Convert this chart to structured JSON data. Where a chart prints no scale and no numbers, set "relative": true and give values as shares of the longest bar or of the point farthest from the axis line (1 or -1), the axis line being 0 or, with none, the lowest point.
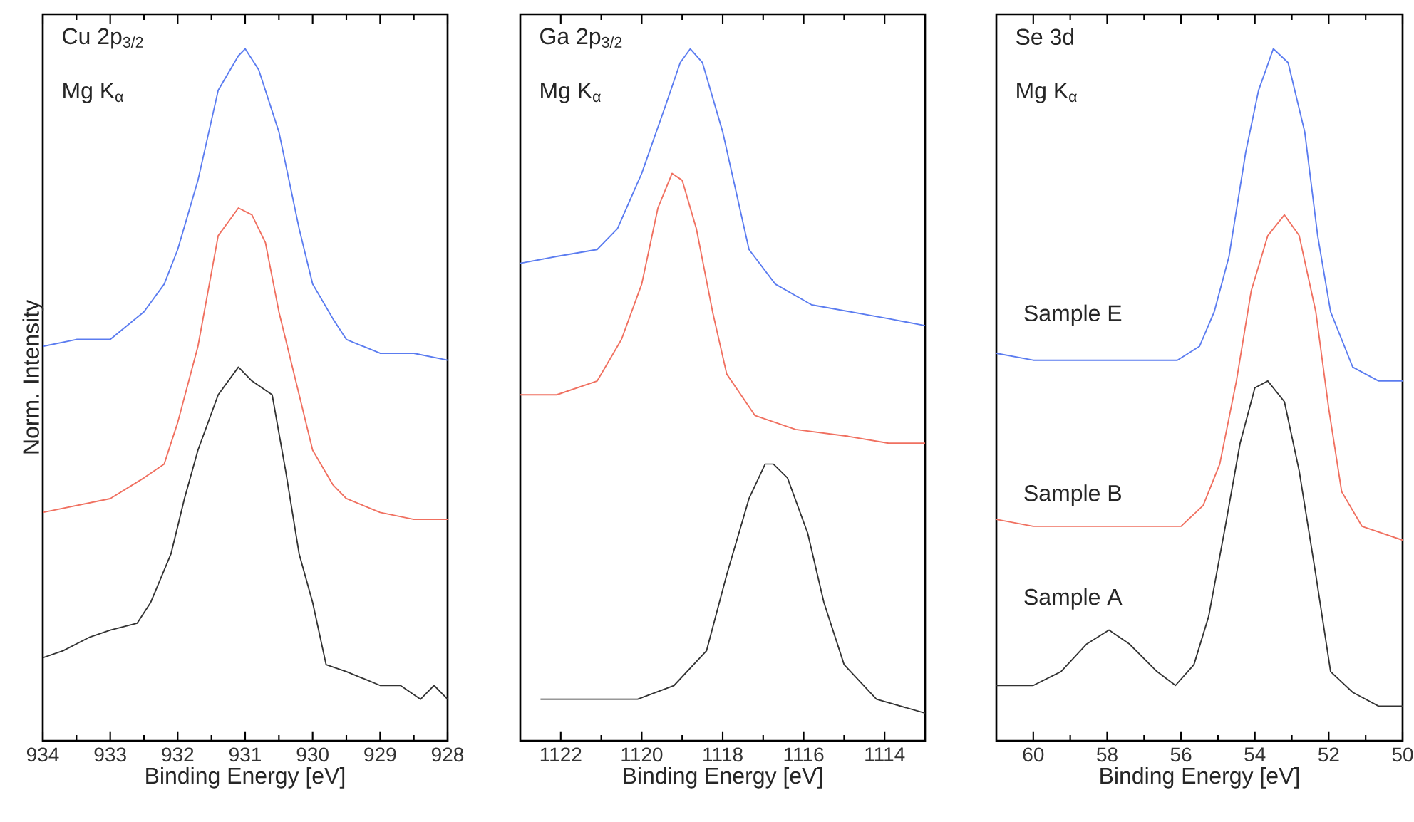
{
  "chart_data": [
    {
      "type": "line",
      "relative": true,
      "tick_labels": "x",
      "ylabel": "Norm. Intensity",
      "xlabel": "Binding Energy [eV]",
      "xlim": [
        934,
        928
      ],
      "xticks": [
        934,
        933,
        932,
        931,
        930,
        929,
        928
      ],
      "annotations": [
        "Cu 2p$_{3/2}$",
        "Mg K$_{α}$"
      ],
      "series": [
        {
          "color": "#5b7cf0",
          "x": [
            934,
            933.5,
            933,
            932.5,
            932.2,
            932,
            931.7,
            931.4,
            931.1,
            931.0,
            930.8,
            930.5,
            930.2,
            930,
            929.7,
            929.5,
            929,
            928.5,
            928
          ],
          "values": [
            0.57,
            0.58,
            0.58,
            0.62,
            0.66,
            0.71,
            0.81,
            0.94,
            0.99,
            1.0,
            0.97,
            0.88,
            0.74,
            0.66,
            0.61,
            0.58,
            0.56,
            0.56,
            0.55
          ]
        },
        {
          "color": "#f07060",
          "x": [
            934,
            933.5,
            933,
            932.5,
            932.2,
            932,
            931.7,
            931.4,
            931.1,
            930.9,
            930.7,
            930.5,
            930.2,
            930,
            929.7,
            929.5,
            929,
            928.5,
            928
          ],
          "values": [
            0.33,
            0.34,
            0.35,
            0.38,
            0.4,
            0.46,
            0.57,
            0.73,
            0.77,
            0.76,
            0.72,
            0.62,
            0.5,
            0.42,
            0.37,
            0.35,
            0.33,
            0.32,
            0.32
          ]
        },
        {
          "color": "#333333",
          "x": [
            934,
            933.7,
            933.3,
            933,
            932.6,
            932.4,
            932.1,
            931.9,
            931.7,
            931.4,
            931.1,
            930.9,
            930.6,
            930.4,
            930.2,
            930,
            929.8,
            929.5,
            929,
            928.7,
            928.4,
            928.2,
            928
          ],
          "values": [
            0.12,
            0.13,
            0.15,
            0.16,
            0.17,
            0.2,
            0.27,
            0.35,
            0.42,
            0.5,
            0.54,
            0.52,
            0.5,
            0.39,
            0.27,
            0.2,
            0.11,
            0.1,
            0.08,
            0.08,
            0.06,
            0.08,
            0.06
          ]
        }
      ]
    },
    {
      "type": "line",
      "relative": true,
      "tick_labels": "x",
      "xlabel": "Binding Energy [eV]",
      "xlim": [
        1123,
        1113
      ],
      "xticks": [
        1122,
        1120,
        1118,
        1116,
        1114
      ],
      "annotations": [
        "Ga 2p$_{3/2}$",
        "Mg K$_{α}$"
      ],
      "series": [
        {
          "color": "#5b7cf0",
          "x": [
            1123,
            1122.1,
            1121.1,
            1120.6,
            1120,
            1119.4,
            1119.05,
            1118.8,
            1118.5,
            1118,
            1117.35,
            1116.7,
            1115.8,
            1114.85,
            1113.9,
            1113
          ],
          "values": [
            0.69,
            0.7,
            0.71,
            0.74,
            0.82,
            0.92,
            0.98,
            1.0,
            0.98,
            0.88,
            0.71,
            0.66,
            0.63,
            0.62,
            0.61,
            0.6
          ]
        },
        {
          "color": "#f07060",
          "x": [
            1123,
            1122.1,
            1121.1,
            1120.5,
            1120,
            1119.6,
            1119.25,
            1119,
            1118.65,
            1118.25,
            1117.9,
            1117.2,
            1116.2,
            1114.9,
            1113.9,
            1113
          ],
          "values": [
            0.5,
            0.5,
            0.52,
            0.58,
            0.66,
            0.77,
            0.82,
            0.81,
            0.74,
            0.62,
            0.53,
            0.47,
            0.45,
            0.44,
            0.43,
            0.43
          ]
        },
        {
          "color": "#333333",
          "x": [
            1122.5,
            1121.4,
            1120.1,
            1119.2,
            1118.4,
            1117.9,
            1117.35,
            1116.95,
            1116.75,
            1116.4,
            1115.9,
            1115.5,
            1115,
            1114.2,
            1113
          ],
          "values": [
            0.06,
            0.06,
            0.06,
            0.08,
            0.13,
            0.24,
            0.35,
            0.4,
            0.4,
            0.38,
            0.3,
            0.2,
            0.11,
            0.06,
            0.04
          ]
        }
      ]
    },
    {
      "type": "line",
      "relative": true,
      "tick_labels": "x",
      "xlabel": "Binding Energy [eV]",
      "xlim": [
        61,
        50
      ],
      "xticks": [
        60,
        58,
        56,
        54,
        52,
        50
      ],
      "annotations": [
        "Se 3d",
        "Mg K$_{α}$"
      ],
      "series": [
        {
          "name": "Sample E",
          "color": "#5b7cf0",
          "x": [
            61,
            60,
            58.5,
            57.1,
            56.1,
            55.5,
            55.1,
            54.7,
            54.25,
            53.9,
            53.5,
            53.1,
            52.65,
            52.3,
            51.95,
            51.35,
            50.65,
            50
          ],
          "values": [
            0.56,
            0.55,
            0.55,
            0.55,
            0.55,
            0.57,
            0.62,
            0.7,
            0.85,
            0.94,
            1.0,
            0.98,
            0.88,
            0.73,
            0.62,
            0.54,
            0.52,
            0.52
          ]
        },
        {
          "name": "Sample B",
          "color": "#f07060",
          "x": [
            61,
            60,
            58.5,
            57.1,
            56,
            55.4,
            54.95,
            54.5,
            54.1,
            53.65,
            53.2,
            52.8,
            52.35,
            52,
            51.65,
            51.1,
            50
          ],
          "values": [
            0.32,
            0.31,
            0.31,
            0.31,
            0.31,
            0.34,
            0.4,
            0.52,
            0.65,
            0.73,
            0.76,
            0.73,
            0.62,
            0.48,
            0.36,
            0.31,
            0.29
          ]
        },
        {
          "name": "Sample A",
          "color": "#333333",
          "x": [
            61,
            60,
            59.25,
            58.55,
            57.95,
            57.4,
            56.65,
            56.15,
            55.65,
            55.25,
            54.8,
            54.4,
            54,
            53.65,
            53.2,
            52.8,
            52.35,
            51.95,
            51.35,
            50.65,
            50
          ],
          "values": [
            0.08,
            0.08,
            0.1,
            0.14,
            0.16,
            0.14,
            0.1,
            0.08,
            0.11,
            0.18,
            0.31,
            0.43,
            0.51,
            0.52,
            0.49,
            0.39,
            0.24,
            0.1,
            0.07,
            0.05,
            0.05
          ]
        }
      ]
    }
  ]
}
